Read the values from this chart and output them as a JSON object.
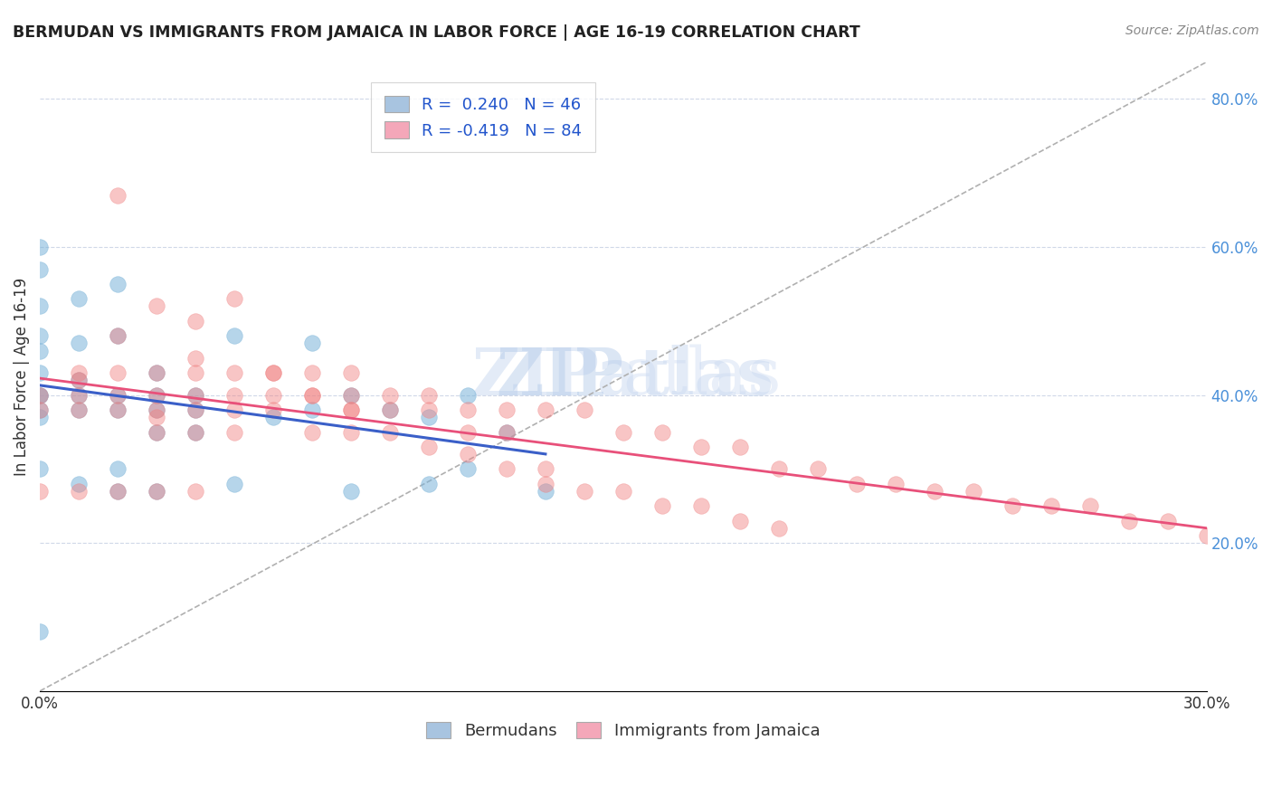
{
  "title": "BERMUDAN VS IMMIGRANTS FROM JAMAICA IN LABOR FORCE | AGE 16-19 CORRELATION CHART",
  "source": "Source: ZipAtlas.com",
  "ylabel": "In Labor Force | Age 16-19",
  "xlabel_bottom": "",
  "xlim": [
    0.0,
    0.3
  ],
  "ylim": [
    0.0,
    0.85
  ],
  "right_yticks": [
    0.2,
    0.4,
    0.6,
    0.8
  ],
  "right_yticklabels": [
    "20.0%",
    "40.0%",
    "60.0%",
    "80.0%"
  ],
  "xticks": [
    0.0,
    0.05,
    0.1,
    0.15,
    0.2,
    0.25,
    0.3
  ],
  "xticklabels": [
    "0.0%",
    "",
    "",
    "",
    "",
    "",
    "30.0%"
  ],
  "legend_r1": "R =  0.240   N = 46",
  "legend_r2": "R = -0.419   N = 84",
  "legend_color1": "#a8c4e0",
  "legend_color2": "#f4a7b9",
  "bermuda_color": "#7ab3d9",
  "jamaica_color": "#f08080",
  "trendline_bermuda_color": "#3a5fc8",
  "trendline_jamaica_color": "#e8507a",
  "trendline_dashed_color": "#b0b0b0",
  "watermark": "ZIPatlas",
  "bermuda_x": [
    0.0,
    0.0,
    0.0,
    0.0,
    0.0,
    0.0,
    0.0,
    0.0,
    0.0,
    0.0,
    0.0,
    0.0,
    0.01,
    0.01,
    0.01,
    0.01,
    0.01,
    0.01,
    0.02,
    0.02,
    0.02,
    0.02,
    0.02,
    0.02,
    0.03,
    0.03,
    0.03,
    0.03,
    0.03,
    0.04,
    0.04,
    0.04,
    0.05,
    0.05,
    0.06,
    0.07,
    0.07,
    0.08,
    0.08,
    0.09,
    0.1,
    0.1,
    0.11,
    0.11,
    0.12,
    0.13
  ],
  "bermuda_y": [
    0.6,
    0.57,
    0.52,
    0.48,
    0.46,
    0.43,
    0.4,
    0.4,
    0.38,
    0.37,
    0.3,
    0.08,
    0.53,
    0.47,
    0.42,
    0.4,
    0.38,
    0.28,
    0.55,
    0.48,
    0.4,
    0.38,
    0.3,
    0.27,
    0.43,
    0.4,
    0.38,
    0.35,
    0.27,
    0.4,
    0.38,
    0.35,
    0.48,
    0.28,
    0.37,
    0.47,
    0.38,
    0.4,
    0.27,
    0.38,
    0.37,
    0.28,
    0.4,
    0.3,
    0.35,
    0.27
  ],
  "jamaica_x": [
    0.0,
    0.0,
    0.0,
    0.01,
    0.01,
    0.01,
    0.01,
    0.01,
    0.02,
    0.02,
    0.02,
    0.02,
    0.02,
    0.03,
    0.03,
    0.03,
    0.03,
    0.03,
    0.03,
    0.04,
    0.04,
    0.04,
    0.04,
    0.04,
    0.04,
    0.05,
    0.05,
    0.05,
    0.05,
    0.06,
    0.06,
    0.06,
    0.07,
    0.07,
    0.07,
    0.08,
    0.08,
    0.08,
    0.08,
    0.09,
    0.09,
    0.1,
    0.1,
    0.11,
    0.11,
    0.12,
    0.12,
    0.13,
    0.13,
    0.14,
    0.15,
    0.16,
    0.17,
    0.18,
    0.19,
    0.2,
    0.21,
    0.22,
    0.23,
    0.24,
    0.25,
    0.26,
    0.27,
    0.28,
    0.29,
    0.3,
    0.02,
    0.03,
    0.04,
    0.05,
    0.06,
    0.07,
    0.08,
    0.09,
    0.1,
    0.11,
    0.12,
    0.13,
    0.14,
    0.15,
    0.16,
    0.17,
    0.18,
    0.19
  ],
  "jamaica_y": [
    0.4,
    0.38,
    0.27,
    0.43,
    0.42,
    0.4,
    0.38,
    0.27,
    0.48,
    0.43,
    0.4,
    0.38,
    0.27,
    0.43,
    0.4,
    0.38,
    0.37,
    0.35,
    0.27,
    0.45,
    0.43,
    0.4,
    0.38,
    0.35,
    0.27,
    0.43,
    0.4,
    0.38,
    0.35,
    0.43,
    0.4,
    0.38,
    0.43,
    0.4,
    0.35,
    0.43,
    0.4,
    0.38,
    0.35,
    0.4,
    0.38,
    0.4,
    0.38,
    0.38,
    0.35,
    0.38,
    0.35,
    0.38,
    0.3,
    0.38,
    0.35,
    0.35,
    0.33,
    0.33,
    0.3,
    0.3,
    0.28,
    0.28,
    0.27,
    0.27,
    0.25,
    0.25,
    0.25,
    0.23,
    0.23,
    0.21,
    0.67,
    0.52,
    0.5,
    0.53,
    0.43,
    0.4,
    0.38,
    0.35,
    0.33,
    0.32,
    0.3,
    0.28,
    0.27,
    0.27,
    0.25,
    0.25,
    0.23,
    0.22
  ]
}
